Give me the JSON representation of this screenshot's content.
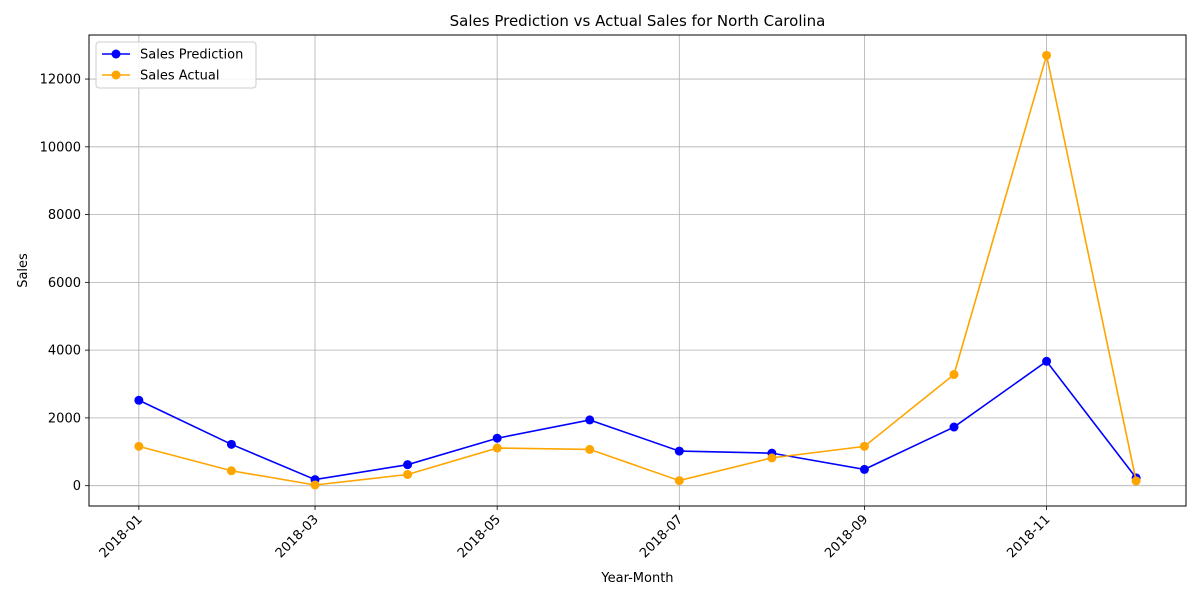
{
  "chart_data": {
    "type": "line",
    "title": "Sales Prediction vs Actual Sales for North Carolina",
    "xlabel": "Year-Month",
    "ylabel": "Sales",
    "x": [
      "2018-01",
      "2018-02",
      "2018-03",
      "2018-04",
      "2018-05",
      "2018-06",
      "2018-07",
      "2018-08",
      "2018-09",
      "2018-10",
      "2018-11",
      "2018-12"
    ],
    "xticks": [
      "2018-01",
      "2018-03",
      "2018-05",
      "2018-07",
      "2018-09",
      "2018-11"
    ],
    "yticks": [
      0,
      2000,
      4000,
      6000,
      8000,
      10000,
      12000
    ],
    "ylim": [
      -600,
      13300
    ],
    "grid": true,
    "legend": "top-left",
    "series": [
      {
        "name": "Sales Prediction",
        "color": "#0000ff",
        "values": [
          2520,
          1220,
          180,
          620,
          1400,
          1940,
          1020,
          960,
          480,
          1730,
          3670,
          230
        ]
      },
      {
        "name": "Sales Actual",
        "color": "#ffa500",
        "values": [
          1160,
          440,
          20,
          330,
          1110,
          1070,
          150,
          820,
          1160,
          3280,
          12700,
          140
        ]
      }
    ]
  }
}
